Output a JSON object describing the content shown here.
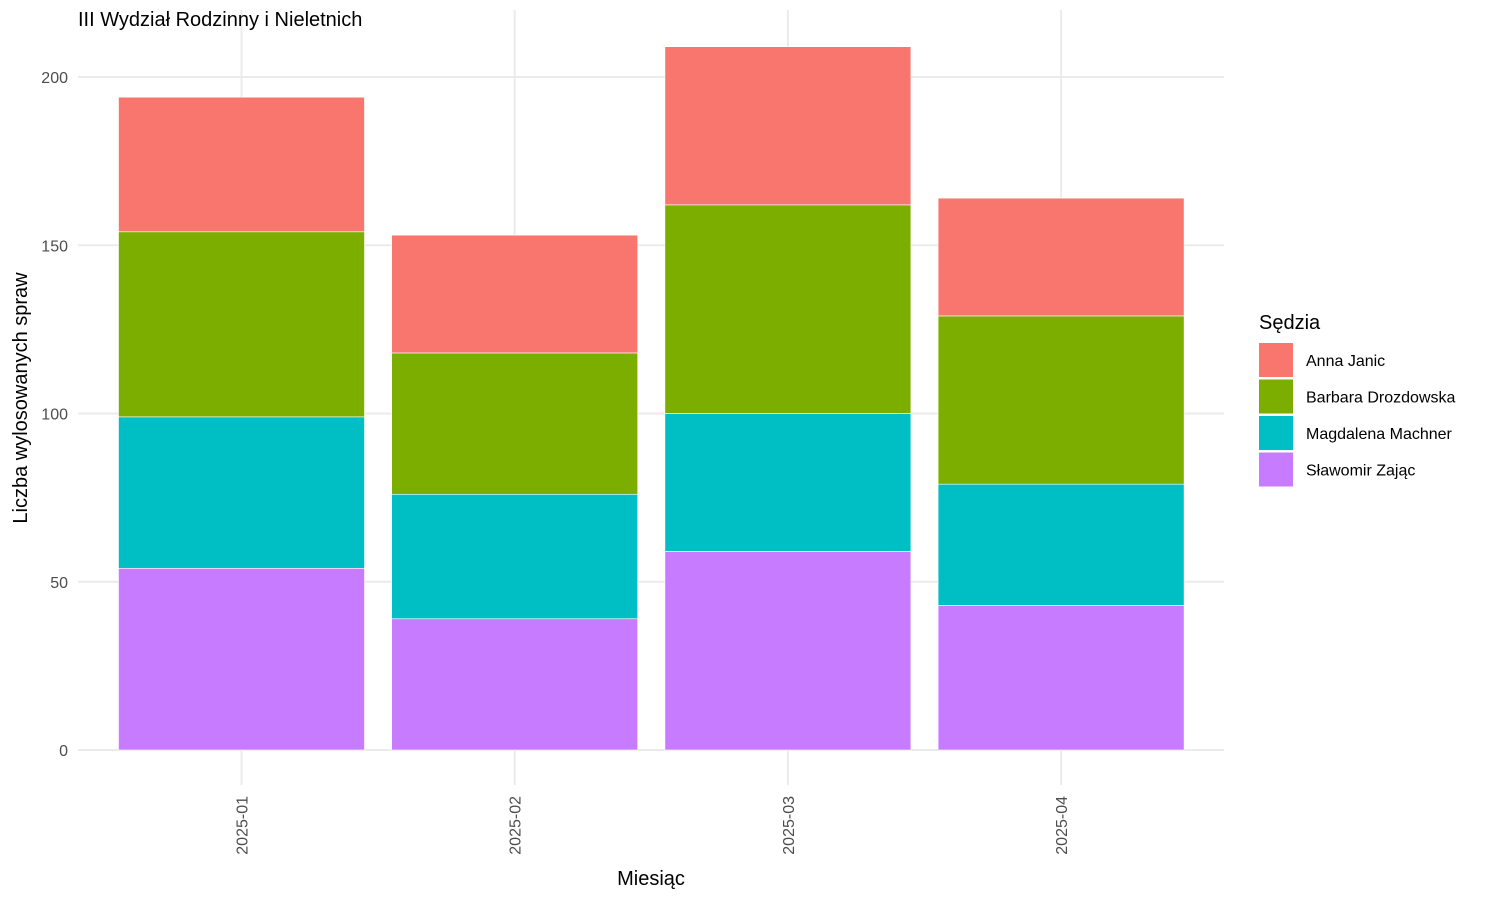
{
  "chart_data": {
    "type": "bar",
    "stacked": true,
    "title": "III Wydział Rodzinny i Nieletnich",
    "xlabel": "Miesiąc",
    "ylabel": "Liczba wylosowanych spraw",
    "categories": [
      "2025-01",
      "2025-02",
      "2025-03",
      "2025-04"
    ],
    "yticks": [
      0,
      50,
      100,
      150,
      200
    ],
    "ylim": [
      0,
      210
    ],
    "grid": true,
    "legend": {
      "title": "Sędzia",
      "position": "right"
    },
    "series": [
      {
        "name": "Sławomir Zając",
        "color": "#C77CFF",
        "values": [
          54,
          39,
          59,
          43
        ]
      },
      {
        "name": "Magdalena Machner",
        "color": "#00BFC4",
        "values": [
          45,
          37,
          41,
          36
        ]
      },
      {
        "name": "Barbara Drozdowska",
        "color": "#7CAE00",
        "values": [
          55,
          42,
          62,
          50
        ]
      },
      {
        "name": "Anna Janic",
        "color": "#F8766D",
        "values": [
          40,
          35,
          47,
          35
        ]
      }
    ]
  }
}
